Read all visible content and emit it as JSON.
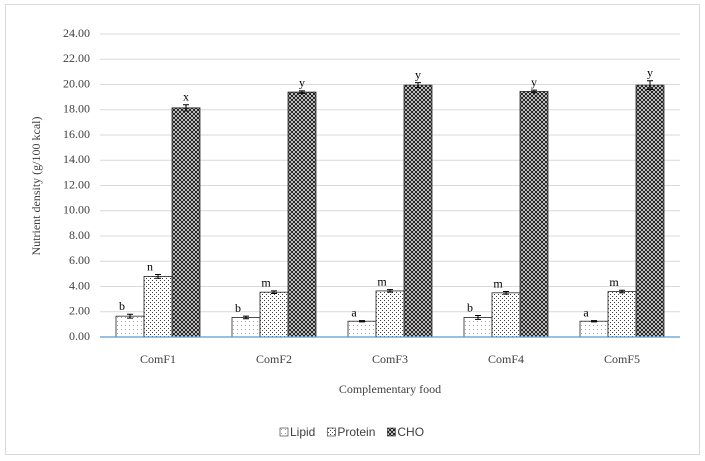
{
  "chart_data": {
    "type": "bar",
    "categories": [
      "ComF1",
      "ComF2",
      "ComF3",
      "ComF4",
      "ComF5"
    ],
    "x_label": "Complementary food",
    "y_label": "Nutrient density (g/100 kcal)",
    "ylim": [
      0,
      24
    ],
    "yticks": [
      {
        "value": 0,
        "label": "0.00"
      },
      {
        "value": 2,
        "label": "2.00"
      },
      {
        "value": 4,
        "label": "4.00"
      },
      {
        "value": 6,
        "label": "6.00"
      },
      {
        "value": 8,
        "label": "8.00"
      },
      {
        "value": 10,
        "label": "10.00"
      },
      {
        "value": 12,
        "label": "12.00"
      },
      {
        "value": 14,
        "label": "14.00"
      },
      {
        "value": 16,
        "label": "16.00"
      },
      {
        "value": 18,
        "label": "18.00"
      },
      {
        "value": 20,
        "label": "20.00"
      },
      {
        "value": 22,
        "label": "22.00"
      },
      {
        "value": 24,
        "label": "24.00"
      }
    ],
    "grid": true,
    "legend": "bottom",
    "series": [
      {
        "name": "Lipid",
        "color": "#a6a6a6",
        "values": [
          1.65,
          1.55,
          1.25,
          1.55,
          1.25
        ],
        "errors": [
          0.15,
          0.1,
          0.05,
          0.15,
          0.05
        ],
        "letters": [
          "b",
          "b",
          "a",
          "b",
          "a"
        ]
      },
      {
        "name": "Protein",
        "color": "#404040",
        "values": [
          4.8,
          3.55,
          3.65,
          3.5,
          3.6
        ],
        "errors": [
          0.15,
          0.1,
          0.1,
          0.1,
          0.1
        ],
        "letters": [
          "n",
          "m",
          "m",
          "m",
          "m"
        ]
      },
      {
        "name": "CHO",
        "color": "#1a1a1a",
        "values": [
          18.15,
          19.4,
          19.95,
          19.45,
          19.95
        ],
        "errors": [
          0.25,
          0.1,
          0.2,
          0.1,
          0.35
        ],
        "letters": [
          "x",
          "y",
          "y",
          "y",
          "y"
        ]
      }
    ]
  }
}
